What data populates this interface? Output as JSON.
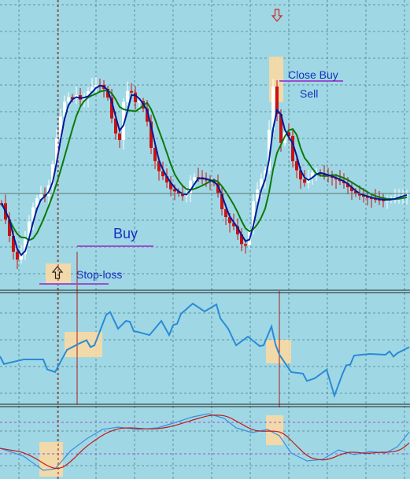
{
  "colors": {
    "background": "#9fd8e4",
    "grid": "#4d7f8c",
    "bull_candle": "#ffffff",
    "bear_candle": "#cc1111",
    "fast_ma": "#001a99",
    "slow_ma": "#0a7a0a",
    "indicator_line": "#2a8ad8",
    "osc_fast": "#3a8ee0",
    "osc_slow": "#c21818",
    "highlight": "#ffd9a0",
    "annotation_line": "#9b4fd0",
    "annotation_text": "#1a2fc0",
    "signal_vline": "#b01a1a"
  },
  "icons": {
    "buy_signal": "arrow-up-icon",
    "sell_signal": "arrow-down-icon"
  },
  "annotations": {
    "buy": "Buy",
    "stop_loss": "Stop-loss",
    "close_buy": "Close Buy",
    "sell": "Sell"
  }
}
